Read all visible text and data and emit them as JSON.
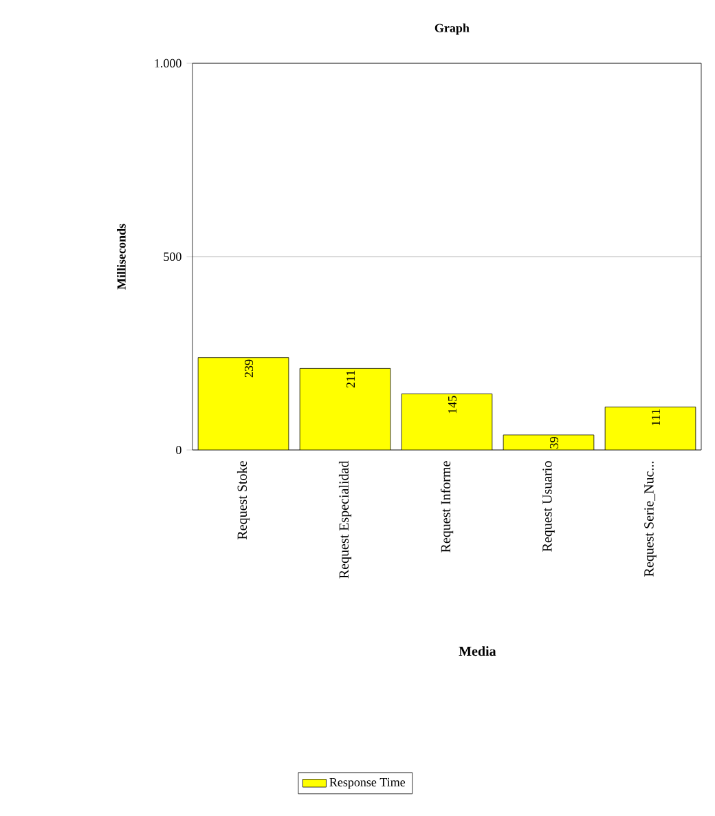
{
  "chart_data": {
    "type": "bar",
    "title": "Graph",
    "xlabel": "Media",
    "ylabel": "Milliseconds",
    "categories": [
      "Request Stoke",
      "Request Especialidad",
      "Request Informe",
      "Request Usuario",
      "Request Serie_Nuc..."
    ],
    "series": [
      {
        "name": "Response Time",
        "color": "#ffff00",
        "values": [
          239,
          211,
          145,
          39,
          111
        ]
      }
    ],
    "ylim": [
      0,
      1000
    ],
    "yticks": [
      0,
      500,
      {
        "value": 1000,
        "label": "1.000"
      }
    ],
    "grid": "y",
    "legend": "bottom",
    "data_labels": true
  }
}
